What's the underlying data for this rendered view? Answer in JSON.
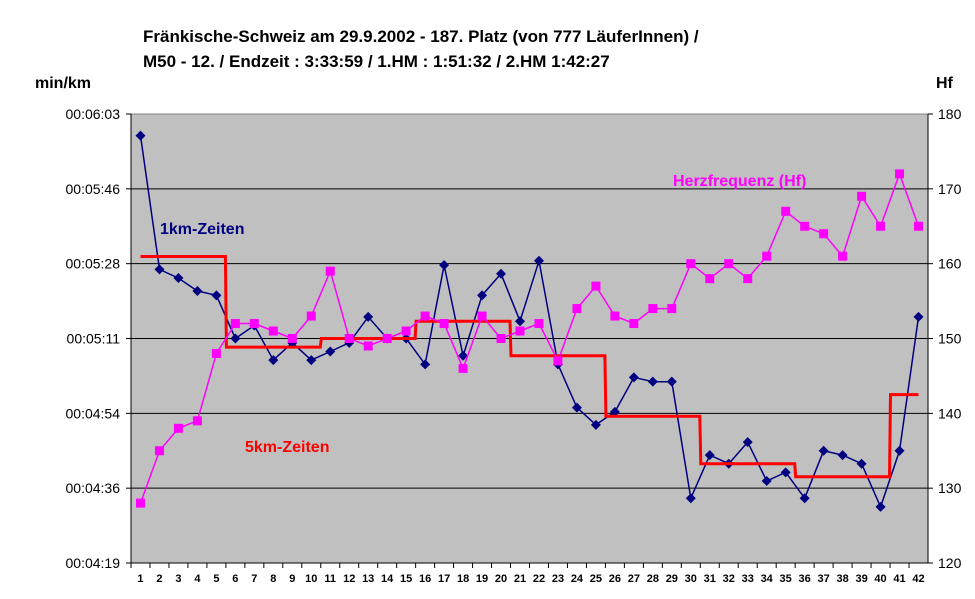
{
  "chart_data": {
    "type": "line",
    "title_lines": [
      "Fränkische-Schweiz am 29.9.2002 - 187. Platz (von 777 LäuferInnen) /",
      "M50 - 12.  /    Endzeit : 3:33:59  / 1.HM : 1:51:32  / 2.HM  1:42:27"
    ],
    "ylabel_left": "min/km",
    "ylabel_right": "Hf",
    "y_left_ticks": [
      "00:04:19",
      "00:04:36",
      "00:04:54",
      "00:05:11",
      "00:05:28",
      "00:05:46",
      "00:06:03"
    ],
    "y_left_range_seconds": [
      259,
      363
    ],
    "y_right_ticks": [
      "120",
      "130",
      "140",
      "150",
      "160",
      "170",
      "180"
    ],
    "y_right_range": [
      120,
      180
    ],
    "x": [
      1,
      2,
      3,
      4,
      5,
      6,
      7,
      8,
      9,
      10,
      11,
      12,
      13,
      14,
      15,
      16,
      17,
      18,
      19,
      20,
      21,
      22,
      23,
      24,
      25,
      26,
      27,
      28,
      29,
      30,
      31,
      32,
      33,
      34,
      35,
      36,
      37,
      38,
      39,
      40,
      41,
      42
    ],
    "grid": "horizontal",
    "plot_background": "#c0c0c0",
    "annotations": [
      {
        "text": "1km-Zeiten",
        "color": "#000080"
      },
      {
        "text": "5km-Zeiten",
        "color": "#ff0000"
      },
      {
        "text": "Herzfrequenz (Hf)",
        "color": "#ff00ff"
      }
    ],
    "series": [
      {
        "axis": "left",
        "color": "#000080",
        "marker": "diamond",
        "values_seconds": [
          358,
          327,
          325,
          322,
          321,
          311,
          314,
          306,
          310,
          306,
          308,
          310,
          316,
          311,
          311,
          305,
          328,
          307,
          321,
          326,
          315,
          329,
          305,
          295,
          291,
          294,
          302,
          301,
          301,
          274,
          284,
          282,
          287,
          278,
          280,
          274,
          285,
          284,
          282,
          272,
          285,
          316
        ]
      },
      {
        "axis": "left",
        "color": "#ff0000",
        "marker": "none",
        "step": true,
        "values_seconds": [
          330,
          330,
          330,
          330,
          330,
          309,
          309,
          309,
          309,
          309,
          311,
          311,
          311,
          311,
          311,
          315,
          315,
          315,
          315,
          315,
          307,
          307,
          307,
          307,
          307,
          293,
          293,
          293,
          293,
          293,
          282,
          282,
          282,
          282,
          282,
          279,
          279,
          279,
          279,
          279,
          298,
          298
        ]
      },
      {
        "axis": "right",
        "color": "#ff00ff",
        "marker": "square",
        "values": [
          128,
          135,
          138,
          139,
          148,
          152,
          152,
          151,
          150,
          153,
          159,
          150,
          149,
          150,
          151,
          153,
          152,
          146,
          153,
          150,
          151,
          152,
          147,
          154,
          157,
          153,
          152,
          154,
          154,
          160,
          158,
          160,
          158,
          161,
          167,
          165,
          164,
          161,
          169,
          165,
          172,
          165
        ]
      }
    ]
  }
}
